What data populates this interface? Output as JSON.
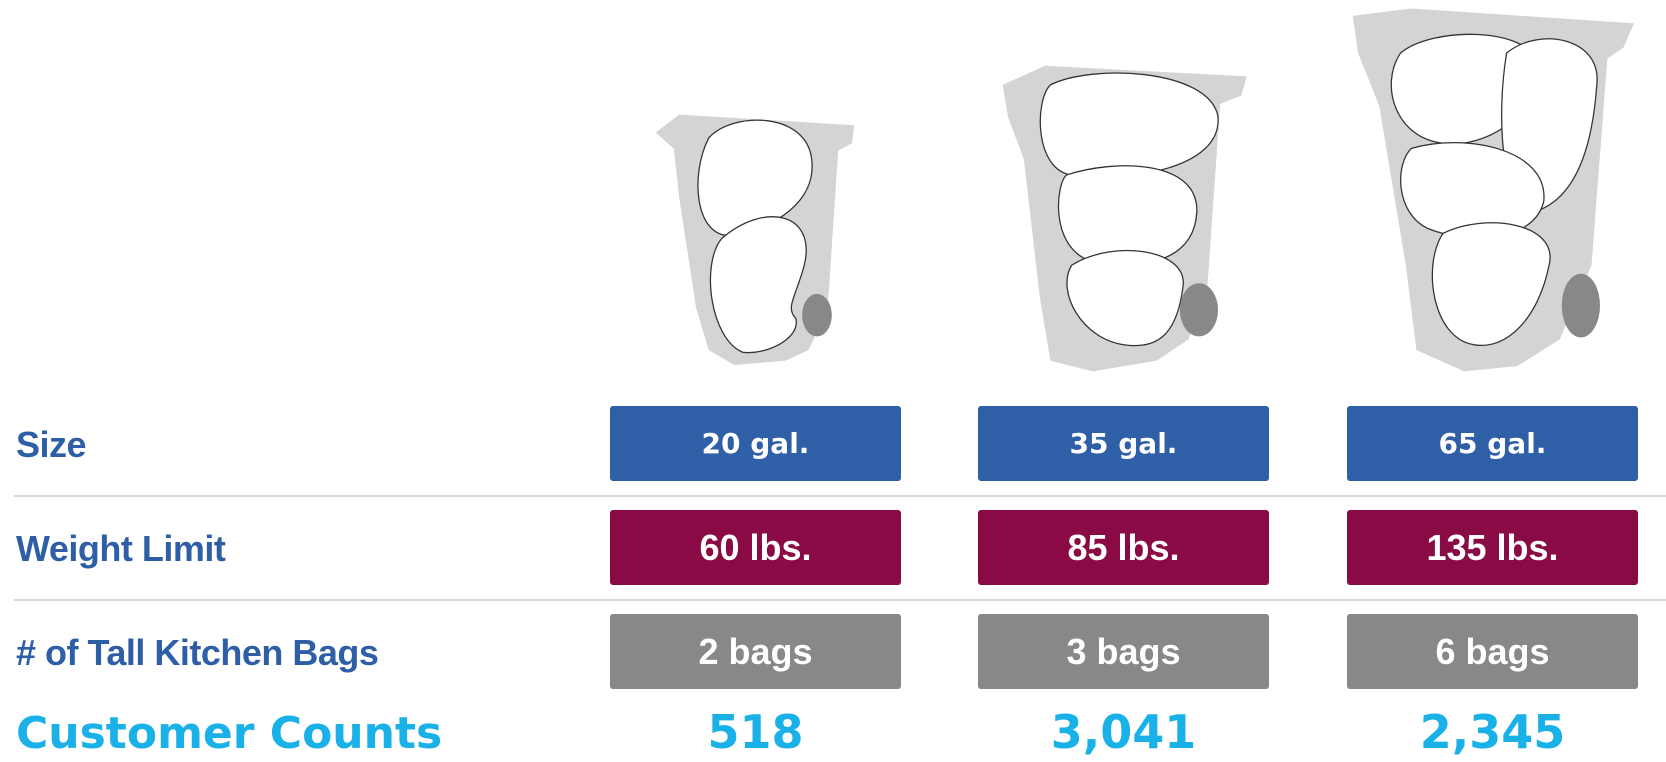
{
  "rows": {
    "size": "Size",
    "weight": "Weight Limit",
    "bags": "# of Tall Kitchen Bags",
    "counts": "Customer Counts"
  },
  "columns": [
    {
      "size": "20 gal.",
      "weight": "60 lbs.",
      "bags": "2 bags",
      "count": "518"
    },
    {
      "size": "35 gal.",
      "weight": "85 lbs.",
      "bags": "3 bags",
      "count": "3,041"
    },
    {
      "size": "65 gal.",
      "weight": "135 lbs.",
      "bags": "6 bags",
      "count": "2,345"
    }
  ]
}
